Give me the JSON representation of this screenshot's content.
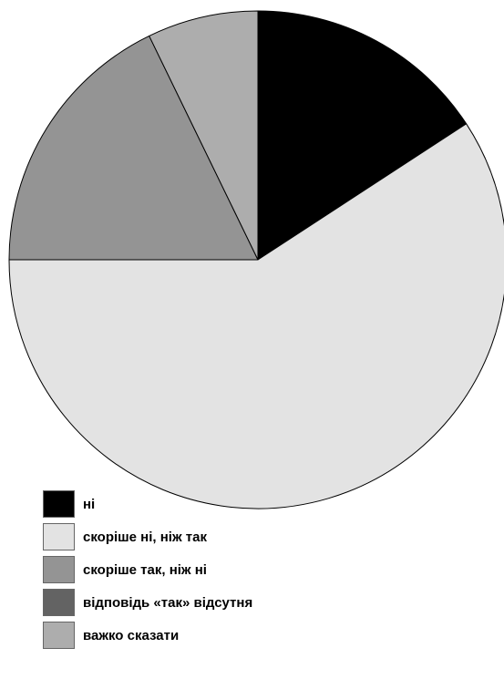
{
  "chart_data": {
    "type": "pie",
    "title": "",
    "start": "top",
    "direction": "clockwise",
    "legend_position": "bottom-left",
    "slices": [
      {
        "label": "ні",
        "value": 15.8,
        "color": "#000000"
      },
      {
        "label": "скоріше ні, ніж так",
        "value": 59.2,
        "color": "#e3e3e3"
      },
      {
        "label": "скоріше так, ніж ні",
        "value": 17.8,
        "color": "#949494"
      },
      {
        "label": "відповідь «так» відсутня",
        "value": 0,
        "color": "#636363"
      },
      {
        "label": "важко сказати",
        "value": 7.2,
        "color": "#adadad"
      }
    ]
  }
}
